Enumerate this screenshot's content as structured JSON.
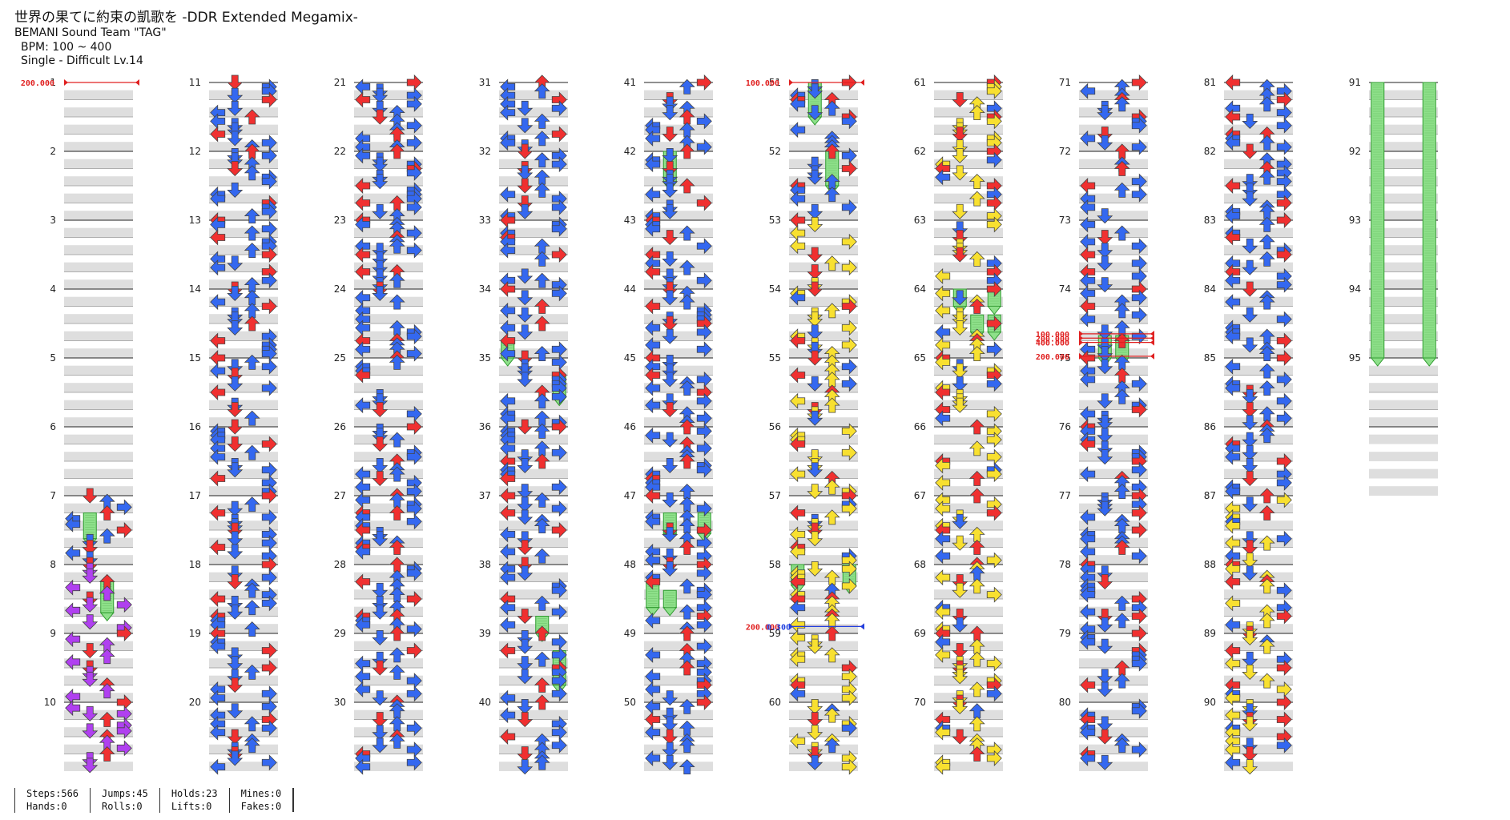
{
  "song": {
    "title": "世界の果てに約束の凱歌を -DDR Extended Megamix-",
    "artist": "BEMANI Sound Team \"TAG\"",
    "bpm": "BPM: 100 ~ 400",
    "difficulty": "Single - Difficult Lv.14"
  },
  "stats": {
    "steps": "Steps:566",
    "hands": "Hands:0",
    "jumps": "Jumps:45",
    "rolls": "Rolls:0",
    "holds": "Holds:23",
    "lifts": "Lifts:0",
    "mines": "Mines:0",
    "fakes": "Fakes:0"
  },
  "chart": {
    "columns": 10,
    "measures_per_column": 10,
    "total_measures": 95,
    "colors": {
      "quarter": "#f03030",
      "eighth": "#3468f0",
      "sixteenth": "#f8e030",
      "twelfth": "#b040f0",
      "hold_fill": "#8ee08a",
      "hold_stroke": "#2f9a2f",
      "band": "#dedede",
      "bpm_marker": "#e02020",
      "stop_marker": "#2040e0"
    },
    "markers": [
      {
        "measure": 1,
        "beat": 0,
        "type": "bpm",
        "label": "200.000"
      },
      {
        "measure": 51,
        "beat": 0,
        "type": "bpm",
        "label": "100.000"
      },
      {
        "measure": 58,
        "beat": 3.6,
        "type": "bpm",
        "label": "200.000"
      },
      {
        "measure": 58,
        "beat": 3.6,
        "type": "stop",
        "label": "0.300"
      },
      {
        "measure": 74,
        "beat": 2.6,
        "type": "bpm",
        "label": "100.000"
      },
      {
        "measure": 74,
        "beat": 2.85,
        "type": "bpm",
        "label": "200.000"
      },
      {
        "measure": 74,
        "beat": 3.1,
        "type": "bpm",
        "label": "400.000"
      },
      {
        "measure": 74,
        "beat": 3.9,
        "type": "bpm",
        "label": "200.000"
      }
    ],
    "holds": [
      {
        "measure": 7,
        "beat": 1,
        "lane": 1,
        "beats": 1.5
      },
      {
        "measure": 8,
        "beat": 1,
        "lane": 2,
        "beats": 1.8
      },
      {
        "measure": 42,
        "beat": 0,
        "lane": 1,
        "beats": 1.8
      },
      {
        "measure": 51,
        "beat": 0,
        "lane": 1,
        "beats": 2
      },
      {
        "measure": 52,
        "beat": 0,
        "lane": 2,
        "beats": 2
      },
      {
        "measure": 34,
        "beat": 3,
        "lane": 0,
        "beats": 1
      },
      {
        "measure": 35,
        "beat": 1,
        "lane": 3,
        "beats": 1.3
      },
      {
        "measure": 38,
        "beat": 3,
        "lane": 2,
        "beats": 1
      },
      {
        "measure": 39,
        "beat": 1,
        "lane": 3,
        "beats": 2
      },
      {
        "measure": 47,
        "beat": 1,
        "lane": 1,
        "beats": 1.2
      },
      {
        "measure": 47,
        "beat": 1,
        "lane": 3,
        "beats": 1.2
      },
      {
        "measure": 48,
        "beat": 1,
        "lane": 0,
        "beats": 1.5
      },
      {
        "measure": 48,
        "beat": 1.5,
        "lane": 1,
        "beats": 1
      },
      {
        "measure": 58,
        "beat": 0,
        "lane": 0,
        "beats": 1.2
      },
      {
        "measure": 58,
        "beat": 0,
        "lane": 3,
        "beats": 1.2
      },
      {
        "measure": 64,
        "beat": 0,
        "lane": 1,
        "beats": 1
      },
      {
        "measure": 64,
        "beat": 0,
        "lane": 3,
        "beats": 1
      },
      {
        "measure": 64,
        "beat": 1.5,
        "lane": 2,
        "beats": 1
      },
      {
        "measure": 64,
        "beat": 1.5,
        "lane": 3,
        "beats": 1
      },
      {
        "measure": 74,
        "beat": 2.7,
        "lane": 1,
        "beats": 1.3
      },
      {
        "measure": 74,
        "beat": 2.7,
        "lane": 2,
        "beats": 1.3
      },
      {
        "measure": 91,
        "beat": 0,
        "lane": 0,
        "beats": 16
      },
      {
        "measure": 91,
        "beat": 0,
        "lane": 3,
        "beats": 16
      }
    ]
  }
}
